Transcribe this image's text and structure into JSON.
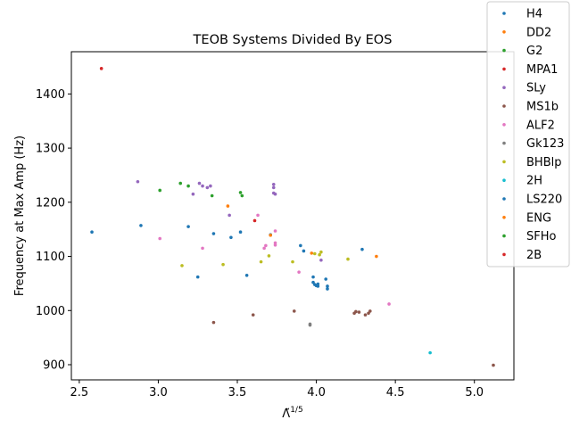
{
  "chart_data": {
    "type": "scatter",
    "title": "TEOB Systems Divided By EOS",
    "xlabel": "Λ̃^(1/5)",
    "ylabel": "Frequency at Max Amp (Hz)",
    "xlim": [
      2.45,
      5.25
    ],
    "ylim": [
      872,
      1478
    ],
    "xticks": [
      "2.5",
      "3.0",
      "3.5",
      "4.0",
      "4.5",
      "5.0"
    ],
    "yticks": [
      "900",
      "1000",
      "1100",
      "1200",
      "1300",
      "1400"
    ],
    "legend_position": "upper-right-outside",
    "grid": false,
    "series": [
      {
        "name": "H4",
        "color": "#1f77b4",
        "points": [
          [
            2.58,
            1145
          ],
          [
            2.89,
            1157
          ],
          [
            3.19,
            1155
          ],
          [
            3.35,
            1142
          ],
          [
            3.46,
            1135
          ],
          [
            3.52,
            1145
          ],
          [
            3.71,
            1140
          ],
          [
            3.9,
            1120
          ],
          [
            3.92,
            1110
          ],
          [
            4.29,
            1113
          ]
        ]
      },
      {
        "name": "DD2",
        "color": "#ff7f0e",
        "points": [
          [
            3.44,
            1193
          ],
          [
            3.71,
            1139
          ],
          [
            3.97,
            1106
          ],
          [
            4.38,
            1100
          ]
        ]
      },
      {
        "name": "G2",
        "color": "#2ca02c",
        "points": [
          [
            3.01,
            1222
          ],
          [
            3.14,
            1235
          ],
          [
            3.19,
            1230
          ],
          [
            3.34,
            1212
          ],
          [
            3.52,
            1218
          ],
          [
            3.53,
            1212
          ]
        ]
      },
      {
        "name": "MPA1",
        "color": "#d62728",
        "points": [
          [
            2.64,
            1447
          ],
          [
            3.61,
            1166
          ]
        ]
      },
      {
        "name": "SLy",
        "color": "#9467bd",
        "points": [
          [
            2.87,
            1238
          ],
          [
            3.22,
            1215
          ],
          [
            3.26,
            1235
          ],
          [
            3.28,
            1230
          ],
          [
            3.31,
            1227
          ],
          [
            3.33,
            1230
          ],
          [
            3.45,
            1176
          ],
          [
            3.73,
            1233
          ],
          [
            3.73,
            1227
          ],
          [
            3.73,
            1217
          ],
          [
            3.74,
            1215
          ],
          [
            4.03,
            1093
          ]
        ]
      },
      {
        "name": "MS1b",
        "color": "#8c564b",
        "points": [
          [
            3.35,
            978
          ],
          [
            3.6,
            992
          ],
          [
            3.86,
            999
          ],
          [
            4.24,
            995
          ],
          [
            4.25,
            998
          ],
          [
            4.27,
            997
          ],
          [
            4.31,
            992
          ],
          [
            4.33,
            995
          ],
          [
            4.34,
            999
          ],
          [
            5.12,
            899
          ]
        ]
      },
      {
        "name": "ALF2",
        "color": "#e377c2",
        "points": [
          [
            3.01,
            1133
          ],
          [
            3.28,
            1115
          ],
          [
            3.63,
            1176
          ],
          [
            3.67,
            1115
          ],
          [
            3.68,
            1120
          ],
          [
            3.74,
            1147
          ],
          [
            3.74,
            1125
          ],
          [
            3.74,
            1121
          ],
          [
            3.89,
            1071
          ],
          [
            4.46,
            1012
          ]
        ]
      },
      {
        "name": "Gk123",
        "color": "#7f7f7f",
        "points": [
          [
            3.96,
            975
          ],
          [
            3.96,
            973
          ]
        ]
      },
      {
        "name": "BHBlp",
        "color": "#bcbd22",
        "points": [
          [
            3.15,
            1083
          ],
          [
            3.41,
            1085
          ],
          [
            3.65,
            1090
          ],
          [
            3.7,
            1101
          ],
          [
            3.85,
            1090
          ],
          [
            3.99,
            1105
          ],
          [
            4.02,
            1103
          ],
          [
            4.03,
            1108
          ],
          [
            4.2,
            1095
          ]
        ]
      },
      {
        "name": "2H",
        "color": "#17becf",
        "points": [
          [
            4.72,
            922
          ]
        ]
      },
      {
        "name": "LS220",
        "color": "#1f77b4",
        "points": [
          [
            3.25,
            1062
          ],
          [
            3.56,
            1065
          ],
          [
            3.98,
            1062
          ],
          [
            3.98,
            1052
          ],
          [
            3.99,
            1048
          ],
          [
            4.0,
            1046
          ],
          [
            4.01,
            1045
          ],
          [
            4.01,
            1049
          ],
          [
            4.06,
            1058
          ],
          [
            4.07,
            1040
          ],
          [
            4.07,
            1045
          ]
        ]
      },
      {
        "name": "ENG",
        "color": "#ff7f0e",
        "points": []
      },
      {
        "name": "SFHo",
        "color": "#2ca02c",
        "points": []
      },
      {
        "name": "2B",
        "color": "#d62728",
        "points": []
      }
    ]
  }
}
